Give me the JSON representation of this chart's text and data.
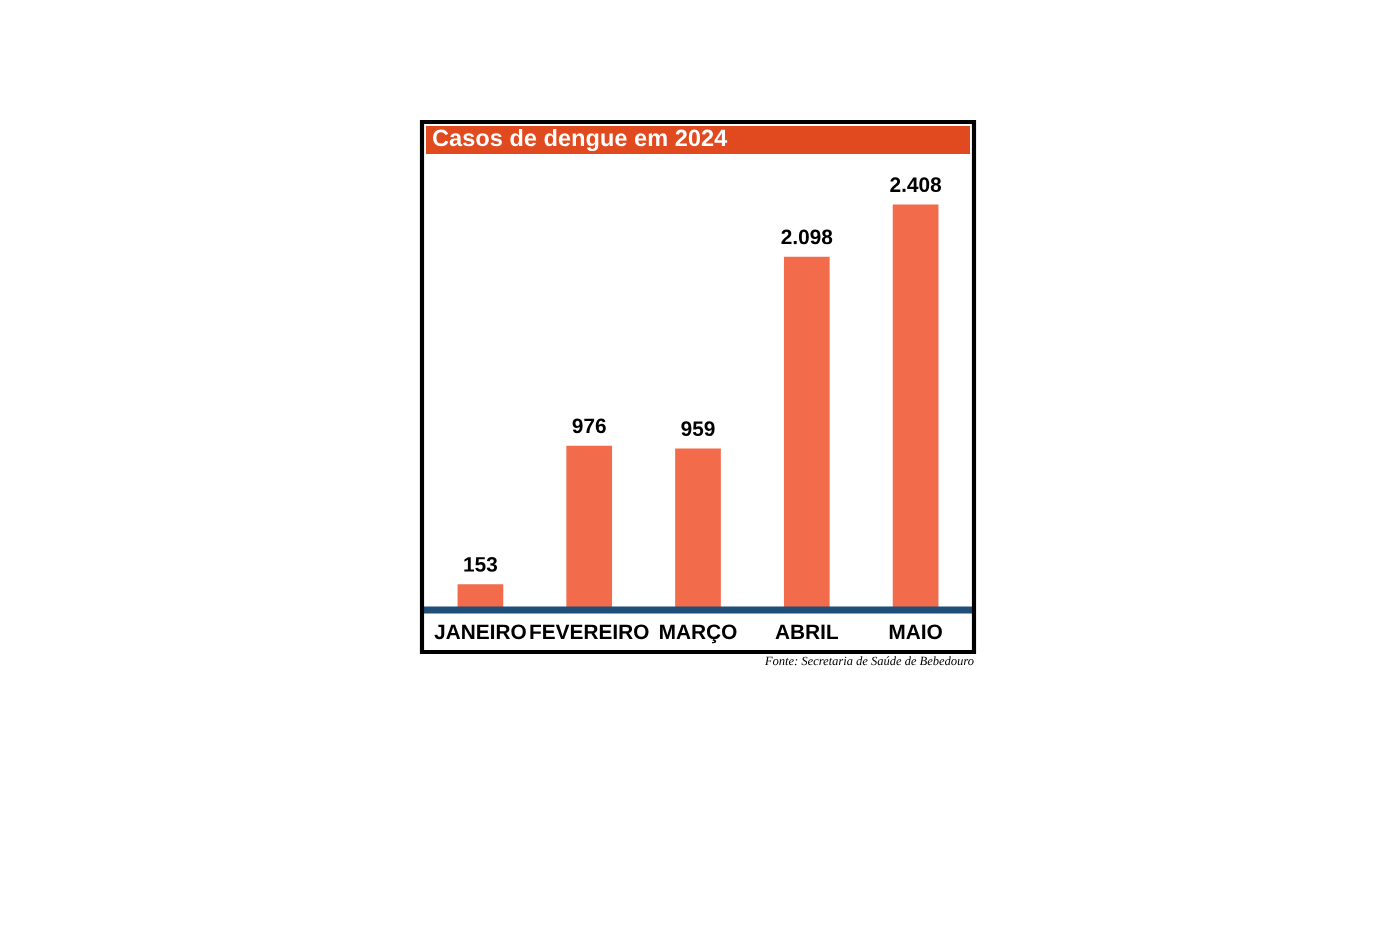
{
  "chart_data": {
    "type": "bar",
    "title": "Casos de dengue em 2024",
    "categories": [
      "JANEIRO",
      "FEVEREIRO",
      "MARÇO",
      "ABRIL",
      "MAIO"
    ],
    "values": [
      153,
      976,
      959,
      2098,
      2408
    ],
    "value_labels": [
      "153",
      "976",
      "959",
      "2.098",
      "2.408"
    ],
    "color": "#f26b4b",
    "annotations": [
      "Fonte: Secretaria de Saúde de Bebedouro"
    ]
  }
}
